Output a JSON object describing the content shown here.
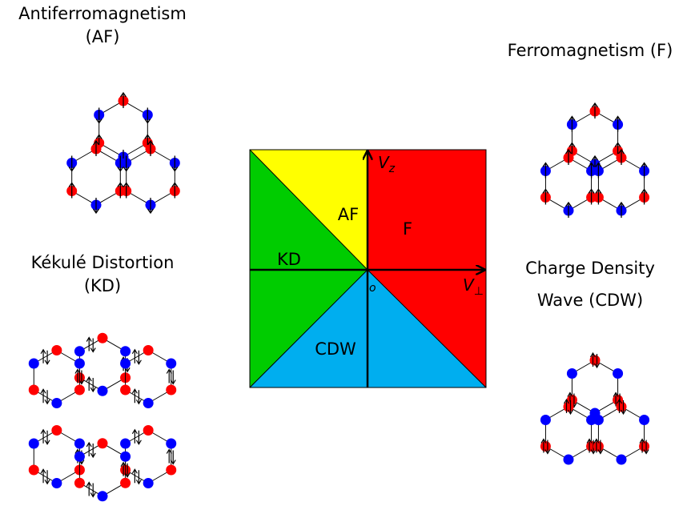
{
  "phases": {
    "af": {
      "title_line1": "Antiferromagnetism",
      "title_line2": "(AF)",
      "region_label": "AF",
      "color": "#ffff00"
    },
    "f": {
      "title_line1": "Ferromagnetism (F)",
      "region_label": "F",
      "color": "#ff0000"
    },
    "kd": {
      "title_line1": "Kékulé Distortion",
      "title_line2": "(KD)",
      "region_label": "KD",
      "color": "#00cc00"
    },
    "cdw": {
      "title_line1": "Charge Density",
      "title_line2": "Wave (CDW)",
      "region_label": "CDW",
      "color": "#00aeef"
    }
  },
  "axes": {
    "x_label": "V",
    "x_subscript": "⊥",
    "y_label": "V",
    "y_subscript": "z",
    "origin_label": "o"
  },
  "colors": {
    "site_red": "#ff0000",
    "site_blue": "#0000ff",
    "bond": "#000000"
  },
  "icons": [
    "up-arrow-icon",
    "down-arrow-icon",
    "up-down-pair-icon"
  ]
}
